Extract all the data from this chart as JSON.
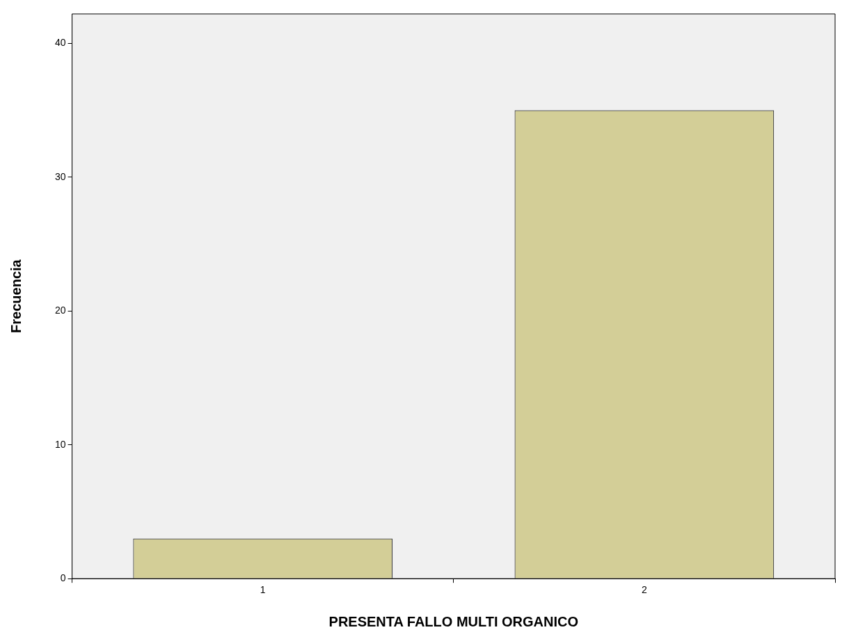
{
  "chart_data": {
    "type": "bar",
    "xlabel": "PRESENTA FALLO MULTI ORGANICO",
    "ylabel": "Frecuencia",
    "categories": [
      "1",
      "2"
    ],
    "values": [
      3,
      35
    ],
    "color": "#d3ce97",
    "ylim": [
      0,
      42.2
    ],
    "yticks": [
      0,
      10,
      20,
      30,
      40
    ],
    "grid": false,
    "legend": false
  }
}
